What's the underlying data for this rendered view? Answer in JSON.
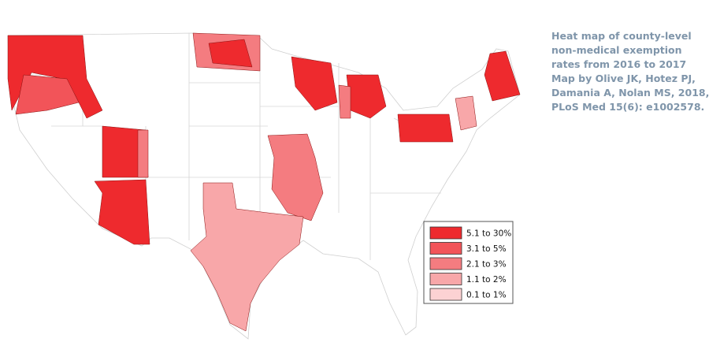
{
  "caption": {
    "lines": [
      "Heat map of county-level",
      "non-medical exemption",
      "rates from 2016 to 2017",
      "Map by Olive JK, Hotez PJ,",
      "Damania A, Nolan MS, 2018,",
      "PLoS Med 15(6): e1002578."
    ]
  },
  "legend": {
    "items": [
      {
        "label": "5.1 to 30%",
        "color": "#ee2a2e"
      },
      {
        "label": "3.1 to 5%",
        "color": "#f25459"
      },
      {
        "label": "2.1 to 3%",
        "color": "#f47c80"
      },
      {
        "label": "1.1 to 2%",
        "color": "#f8a7a9"
      },
      {
        "label": "0.1 to 1%",
        "color": "#fcd2d3"
      }
    ]
  }
}
